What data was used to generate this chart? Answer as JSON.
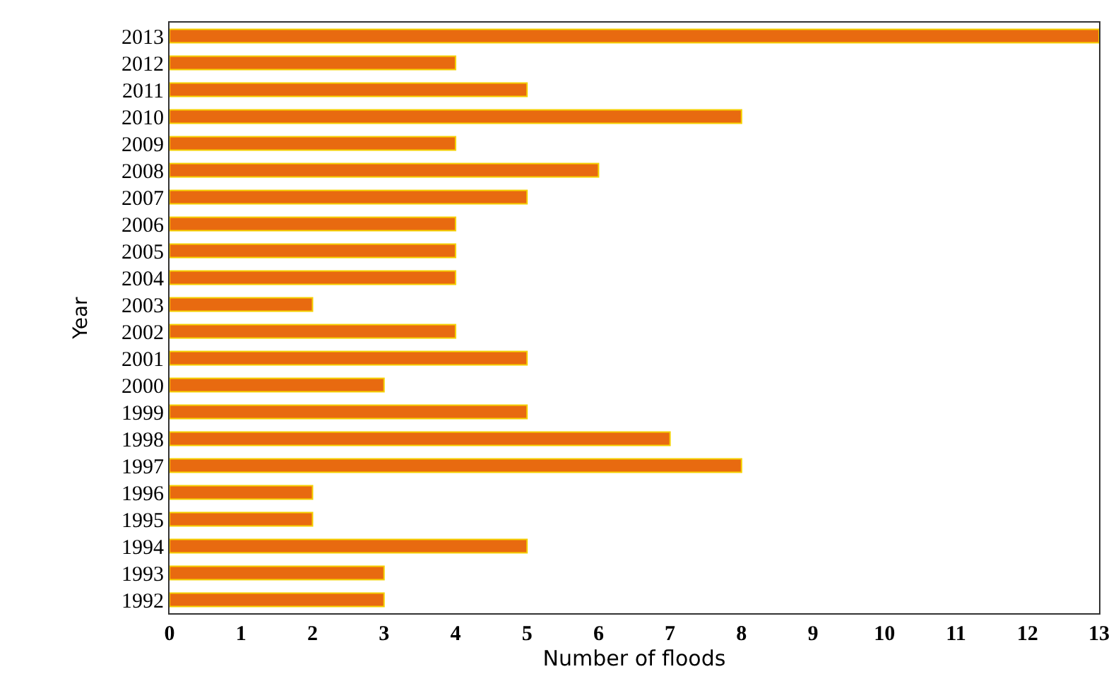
{
  "chart_data": {
    "type": "bar",
    "orientation": "horizontal",
    "xlabel": "Number of floods",
    "ylabel": "Year",
    "categories": [
      "2013",
      "2012",
      "2011",
      "2010",
      "2009",
      "2008",
      "2007",
      "2006",
      "2005",
      "2004",
      "2003",
      "2002",
      "2001",
      "2000",
      "1999",
      "1998",
      "1997",
      "1996",
      "1995",
      "1994",
      "1993",
      "1992"
    ],
    "values": [
      13,
      4,
      5,
      8,
      4,
      6,
      5,
      4,
      4,
      4,
      2,
      4,
      5,
      3,
      5,
      7,
      8,
      2,
      2,
      5,
      3,
      3
    ],
    "color": "#e86a10",
    "xlim": [
      0,
      13
    ],
    "xticks": [
      0,
      1,
      2,
      3,
      4,
      5,
      6,
      7,
      8,
      9,
      10,
      11,
      12,
      13
    ],
    "grid": false,
    "legend": false
  }
}
